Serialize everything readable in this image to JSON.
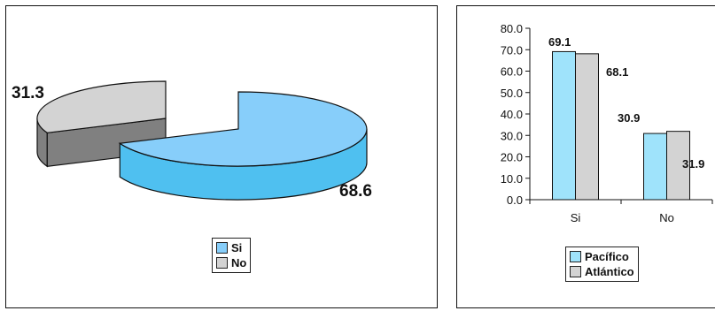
{
  "chart_data": [
    {
      "type": "pie",
      "slices": [
        {
          "label": "Si",
          "value": 68.6,
          "color": "#87CEFA",
          "side_color": "#4FC0F0"
        },
        {
          "label": "No",
          "value": 31.3,
          "color": "#D3D3D3",
          "side_color": "#808080"
        }
      ],
      "data_labels": [
        "68.6",
        "31.3"
      ],
      "legend": [
        "Si",
        "No"
      ],
      "legend_position": "bottom-center",
      "style": "3d-exploded"
    },
    {
      "type": "bar",
      "categories": [
        "Si",
        "No"
      ],
      "series": [
        {
          "name": "Pacífico",
          "values": [
            69.1,
            30.9
          ],
          "color": "#9FE3FB"
        },
        {
          "name": "Atlántico",
          "values": [
            68.1,
            31.9
          ],
          "color": "#D3D3D3"
        }
      ],
      "data_labels": [
        [
          "69.1",
          "30.9"
        ],
        [
          "68.1",
          "31.9"
        ]
      ],
      "ylim": [
        0,
        80
      ],
      "yticks": [
        "0.0",
        "10.0",
        "20.0",
        "30.0",
        "40.0",
        "50.0",
        "60.0",
        "70.0",
        "80.0"
      ],
      "legend_position": "bottom-center",
      "grid": false
    }
  ]
}
